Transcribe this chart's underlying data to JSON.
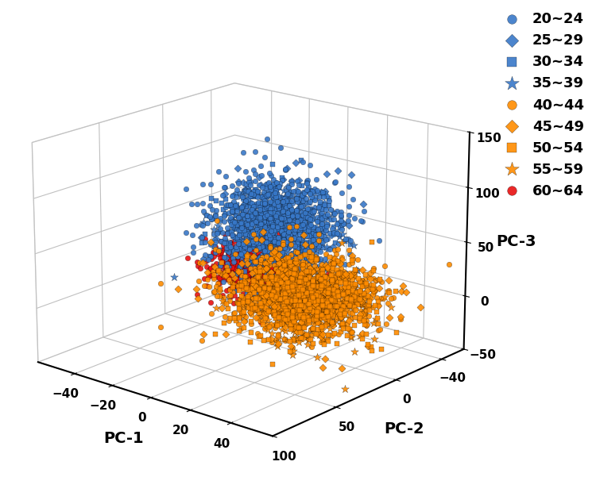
{
  "groups": [
    {
      "label": "20~24",
      "color": "#3878c8",
      "marker": "o",
      "n": 900,
      "pc1_mean": -10,
      "pc1_std": 12,
      "pc2_mean": -15,
      "pc2_std": 18,
      "pc3_mean": 55,
      "pc3_std": 20
    },
    {
      "label": "25~29",
      "color": "#3878c8",
      "marker": "D",
      "n": 220,
      "pc1_mean": -12,
      "pc1_std": 10,
      "pc2_mean": -18,
      "pc2_std": 18,
      "pc3_mean": 52,
      "pc3_std": 20
    },
    {
      "label": "30~34",
      "color": "#3878c8",
      "marker": "s",
      "n": 270,
      "pc1_mean": -8,
      "pc1_std": 10,
      "pc2_mean": -12,
      "pc2_std": 18,
      "pc3_mean": 50,
      "pc3_std": 20
    },
    {
      "label": "35~39",
      "color": "#3878c8",
      "marker": "*",
      "n": 130,
      "pc1_mean": -5,
      "pc1_std": 12,
      "pc2_mean": -10,
      "pc2_std": 18,
      "pc3_mean": 38,
      "pc3_std": 22
    },
    {
      "label": "40~44",
      "color": "#ff8c00",
      "marker": "o",
      "n": 750,
      "pc1_mean": 12,
      "pc1_std": 16,
      "pc2_mean": 5,
      "pc2_std": 18,
      "pc3_mean": 10,
      "pc3_std": 16
    },
    {
      "label": "45~49",
      "color": "#ff8c00",
      "marker": "D",
      "n": 350,
      "pc1_mean": 18,
      "pc1_std": 15,
      "pc2_mean": 8,
      "pc2_std": 18,
      "pc3_mean": 12,
      "pc3_std": 16
    },
    {
      "label": "50~54",
      "color": "#ff8c00",
      "marker": "s",
      "n": 420,
      "pc1_mean": 22,
      "pc1_std": 14,
      "pc2_mean": 10,
      "pc2_std": 18,
      "pc3_mean": 8,
      "pc3_std": 16
    },
    {
      "label": "55~59",
      "color": "#ff8c00",
      "marker": "*",
      "n": 220,
      "pc1_mean": 26,
      "pc1_std": 14,
      "pc2_mean": 12,
      "pc2_std": 18,
      "pc3_mean": 6,
      "pc3_std": 16
    },
    {
      "label": "60~64",
      "color": "#e81010",
      "marker": "o",
      "n": 550,
      "pc1_mean": -28,
      "pc1_std": 8,
      "pc2_mean": -20,
      "pc2_std": 10,
      "pc3_mean": 2,
      "pc3_std": 12
    }
  ],
  "pc1_lim": [
    -60,
    60
  ],
  "pc2_lim": [
    -60,
    100
  ],
  "pc3_lim": [
    -50,
    150
  ],
  "pc1_ticks": [
    -40,
    -20,
    0,
    20,
    40
  ],
  "pc2_ticks": [
    100,
    50,
    0,
    -40
  ],
  "pc3_ticks": [
    -50,
    0,
    50,
    100,
    150
  ],
  "xlabel": "PC-1",
  "ylabel": "PC-2",
  "zlabel": "PC-3",
  "marker_size": 22,
  "star_size": 55,
  "blue_color": "#3878c8",
  "orange_color": "#ff8c00",
  "red_color": "#e81010",
  "grid_color": "#c0c0c0",
  "pane_color": "#ffffff",
  "elev": 18,
  "azim": -50,
  "tick_fontsize": 11,
  "label_fontsize": 14,
  "legend_fontsize": 13
}
